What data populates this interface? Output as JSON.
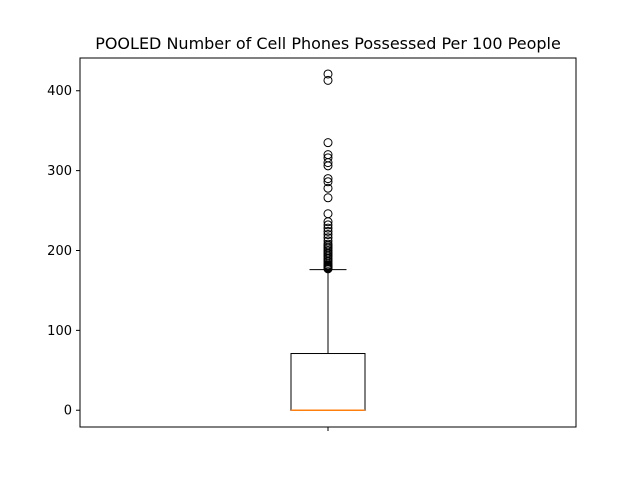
{
  "chart_data": {
    "type": "box",
    "title": "POOLED Number of Cell Phones Possessed Per 100 People",
    "xlabel": "",
    "ylabel": "",
    "ylim": [
      -21,
      441
    ],
    "yticks": [
      0,
      100,
      200,
      300,
      400
    ],
    "xticks": [
      ""
    ],
    "grid": false,
    "series": [
      {
        "q1": 0,
        "median": 0,
        "q3": 71,
        "whisker_low": 0,
        "whisker_high": 176,
        "outliers": [
          177,
          178,
          179,
          180,
          181,
          182,
          184,
          186,
          188,
          190,
          192,
          194,
          196,
          198,
          200,
          202,
          204,
          206,
          208,
          212,
          216,
          220,
          224,
          228,
          232,
          236,
          246,
          266,
          278,
          286,
          290,
          306,
          310,
          316,
          320,
          335,
          413,
          421
        ]
      }
    ],
    "colors": {
      "box": "#000000",
      "median": "#ff7f0e",
      "outlier": "#000000"
    }
  }
}
